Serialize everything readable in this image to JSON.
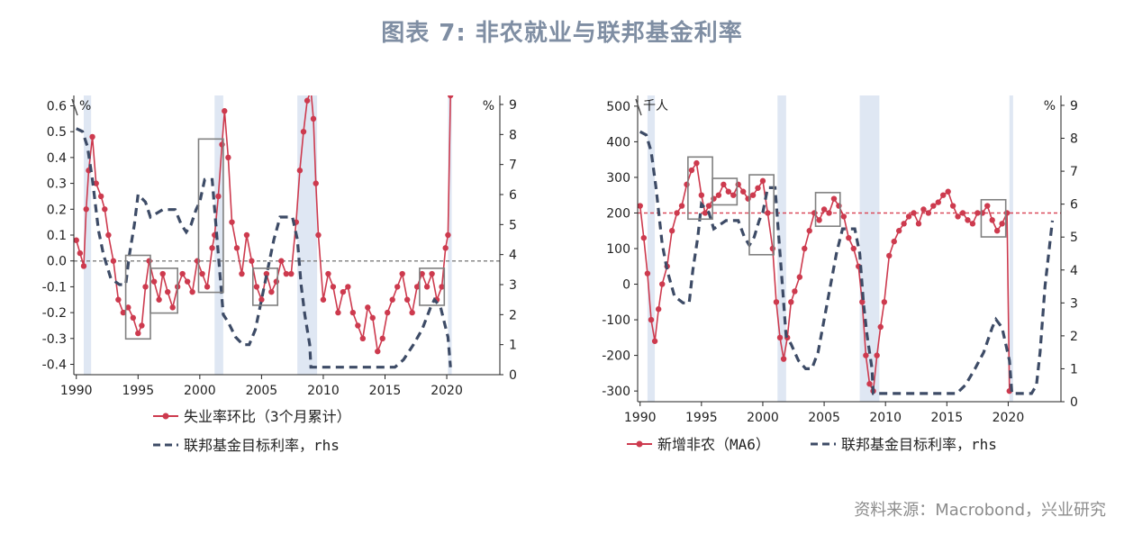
{
  "title": "图表 7:  非农就业与联邦基金利率",
  "source": "资料来源：Macrobond，兴业研究",
  "colors": {
    "red": "#cd3a4e",
    "navy": "#3d4b66",
    "shade": "#dfe7f3",
    "box": "#808080",
    "refline": "#888888",
    "refline_red": "#d94a5a"
  },
  "chart_data": [
    {
      "type": "line",
      "left_unit": "%",
      "right_unit": "%",
      "left_ticks": [
        "0.6",
        "0.5",
        "0.4",
        "0.3",
        "0.2",
        "0.1",
        "0.0",
        "-0.1",
        "-0.2",
        "-0.3",
        "-0.4"
      ],
      "right_ticks": [
        "9",
        "8",
        "7",
        "6",
        "5",
        "4",
        "3",
        "2",
        "1",
        "0"
      ],
      "x_ticks": [
        "1990",
        "1995",
        "2000",
        "2005",
        "2010",
        "2015",
        "2020"
      ],
      "xlim": [
        1989.8,
        2024.3
      ],
      "ylim_left": [
        -0.44,
        0.64
      ],
      "ylim_right": [
        0,
        9.3
      ],
      "recessions": [
        [
          1990.6,
          1991.2
        ],
        [
          2001.2,
          2001.9
        ],
        [
          2007.9,
          2009.5
        ],
        [
          2020.1,
          2020.4
        ]
      ],
      "highlight_boxes": [
        [
          1994.0,
          1996.0
        ],
        [
          1996.0,
          1998.2
        ],
        [
          1999.9,
          2001.9
        ],
        [
          2004.3,
          2006.3
        ],
        [
          2017.8,
          2019.8
        ]
      ],
      "reference_line": 0.0,
      "series": [
        {
          "name": "失业率环比（3个月累计）",
          "axis": "left",
          "style": "line-markers",
          "x": [
            1990.0,
            1990.3,
            1990.6,
            1990.8,
            1991.0,
            1991.3,
            1991.6,
            1992.0,
            1992.3,
            1992.6,
            1993.0,
            1993.4,
            1993.8,
            1994.2,
            1994.6,
            1995.0,
            1995.3,
            1995.6,
            1995.9,
            1996.3,
            1996.7,
            1997.0,
            1997.4,
            1997.8,
            1998.2,
            1998.6,
            1999.0,
            1999.4,
            1999.8,
            2000.2,
            2000.6,
            2001.0,
            2001.2,
            2001.5,
            2001.8,
            2002.0,
            2002.3,
            2002.6,
            2003.0,
            2003.4,
            2003.8,
            2004.2,
            2004.6,
            2005.0,
            2005.4,
            2005.8,
            2006.2,
            2006.6,
            2007.0,
            2007.4,
            2007.8,
            2008.1,
            2008.4,
            2008.7,
            2009.0,
            2009.2,
            2009.4,
            2009.6,
            2010.0,
            2010.4,
            2010.8,
            2011.2,
            2011.6,
            2012.0,
            2012.4,
            2012.8,
            2013.2,
            2013.6,
            2014.0,
            2014.4,
            2014.8,
            2015.2,
            2015.6,
            2016.0,
            2016.4,
            2016.8,
            2017.2,
            2017.6,
            2018.0,
            2018.4,
            2018.8,
            2019.2,
            2019.6,
            2019.9,
            2020.1,
            2020.3
          ],
          "y": [
            0.08,
            0.03,
            -0.02,
            0.2,
            0.35,
            0.48,
            0.3,
            0.25,
            0.2,
            0.1,
            0.0,
            -0.15,
            -0.2,
            -0.18,
            -0.22,
            -0.28,
            -0.25,
            -0.1,
            0.0,
            -0.08,
            -0.15,
            -0.05,
            -0.12,
            -0.18,
            -0.1,
            -0.05,
            -0.08,
            -0.12,
            0.0,
            -0.05,
            -0.1,
            0.05,
            0.1,
            0.25,
            0.45,
            0.58,
            0.4,
            0.15,
            0.05,
            -0.05,
            0.1,
            0.0,
            -0.1,
            -0.15,
            -0.05,
            -0.12,
            -0.08,
            0.0,
            -0.05,
            -0.05,
            0.15,
            0.35,
            0.5,
            0.62,
            0.66,
            0.55,
            0.3,
            0.1,
            -0.15,
            -0.05,
            -0.1,
            -0.2,
            -0.12,
            -0.1,
            -0.2,
            -0.25,
            -0.3,
            -0.18,
            -0.22,
            -0.35,
            -0.3,
            -0.2,
            -0.15,
            -0.1,
            -0.05,
            -0.15,
            -0.2,
            -0.1,
            -0.05,
            -0.1,
            -0.05,
            -0.15,
            -0.1,
            0.05,
            0.1,
            0.64
          ]
        },
        {
          "name": "联邦基金目标利率，rhs",
          "axis": "right",
          "style": "dashed",
          "x": [
            1990.0,
            1990.5,
            1990.9,
            1991.3,
            1991.8,
            1992.2,
            1992.8,
            1993.5,
            1994.0,
            1994.3,
            1994.7,
            1995.0,
            1995.6,
            1996.0,
            1997.0,
            1998.0,
            1998.5,
            1998.9,
            1999.3,
            1999.7,
            2000.0,
            2000.4,
            2001.0,
            2001.3,
            2001.6,
            2001.9,
            2002.3,
            2002.9,
            2003.5,
            2004.0,
            2004.5,
            2005.0,
            2005.5,
            2006.0,
            2006.5,
            2007.5,
            2007.9,
            2008.2,
            2008.5,
            2008.9,
            2009.0,
            2015.8,
            2016.5,
            2017.3,
            2018.0,
            2018.7,
            2019.0,
            2019.5,
            2019.8,
            2020.1,
            2020.3
          ],
          "y": [
            8.2,
            8.1,
            7.6,
            6.5,
            4.8,
            4.0,
            3.2,
            3.0,
            3.0,
            4.0,
            5.0,
            6.0,
            5.75,
            5.25,
            5.5,
            5.5,
            5.0,
            4.75,
            5.0,
            5.5,
            5.75,
            6.5,
            6.5,
            5.0,
            3.5,
            2.0,
            1.75,
            1.25,
            1.0,
            1.0,
            1.5,
            2.5,
            3.5,
            4.5,
            5.25,
            5.25,
            4.5,
            3.0,
            2.0,
            1.0,
            0.25,
            0.25,
            0.5,
            1.0,
            1.5,
            2.25,
            2.5,
            2.25,
            1.75,
            1.25,
            0.25
          ]
        }
      ]
    },
    {
      "type": "line",
      "left_unit": "千人",
      "right_unit": "%",
      "left_ticks": [
        "500",
        "400",
        "300",
        "200",
        "100",
        "0",
        "-100",
        "-200",
        "-300"
      ],
      "right_ticks": [
        "9",
        "8",
        "7",
        "6",
        "5",
        "4",
        "3",
        "2",
        "1",
        "0"
      ],
      "x_ticks": [
        "1990",
        "1995",
        "2000",
        "2005",
        "2010",
        "2015",
        "2020"
      ],
      "xlim": [
        1989.8,
        2024.3
      ],
      "ylim_left": [
        -330,
        530
      ],
      "ylim_right": [
        0,
        9.3
      ],
      "recessions": [
        [
          1990.6,
          1991.2
        ],
        [
          2001.2,
          2001.9
        ],
        [
          2007.9,
          2009.5
        ],
        [
          2020.1,
          2020.4
        ]
      ],
      "highlight_boxes": [
        [
          1993.9,
          1995.9
        ],
        [
          1995.9,
          1997.9
        ],
        [
          1998.9,
          2000.9
        ],
        [
          2004.3,
          2006.3
        ],
        [
          2017.8,
          2019.8
        ]
      ],
      "reference_line": 200,
      "series": [
        {
          "name": "新增非农（MA6）",
          "axis": "left",
          "style": "line-markers",
          "x": [
            1990.0,
            1990.3,
            1990.6,
            1990.9,
            1991.2,
            1991.5,
            1991.8,
            1992.2,
            1992.6,
            1993.0,
            1993.4,
            1993.8,
            1994.2,
            1994.6,
            1995.0,
            1995.3,
            1995.6,
            1996.0,
            1996.4,
            1996.8,
            1997.2,
            1997.6,
            1998.0,
            1998.4,
            1998.8,
            1999.2,
            1999.6,
            2000.0,
            2000.4,
            2000.8,
            2001.1,
            2001.4,
            2001.7,
            2002.0,
            2002.3,
            2002.6,
            2003.0,
            2003.4,
            2003.8,
            2004.2,
            2004.6,
            2005.0,
            2005.4,
            2005.8,
            2006.2,
            2006.6,
            2007.0,
            2007.4,
            2007.8,
            2008.1,
            2008.4,
            2008.7,
            2009.0,
            2009.3,
            2009.6,
            2009.9,
            2010.3,
            2010.7,
            2011.1,
            2011.5,
            2011.9,
            2012.3,
            2012.7,
            2013.1,
            2013.5,
            2013.9,
            2014.3,
            2014.7,
            2015.1,
            2015.5,
            2015.9,
            2016.3,
            2016.7,
            2017.1,
            2017.5,
            2017.9,
            2018.3,
            2018.7,
            2019.1,
            2019.5,
            2019.9,
            2020.1
          ],
          "y": [
            220,
            130,
            30,
            -100,
            -160,
            -70,
            0,
            50,
            150,
            200,
            220,
            280,
            320,
            340,
            250,
            200,
            220,
            240,
            250,
            280,
            260,
            250,
            280,
            260,
            240,
            250,
            270,
            290,
            200,
            100,
            -50,
            -150,
            -210,
            -150,
            -50,
            -20,
            20,
            100,
            150,
            200,
            180,
            210,
            200,
            240,
            220,
            190,
            130,
            100,
            50,
            -50,
            -200,
            -280,
            -300,
            -200,
            -120,
            -50,
            80,
            120,
            150,
            170,
            190,
            200,
            170,
            210,
            200,
            220,
            230,
            250,
            260,
            220,
            190,
            200,
            180,
            170,
            200,
            200,
            220,
            180,
            150,
            170,
            200,
            -300
          ]
        },
        {
          "name": "联邦基金目标利率，rhs",
          "axis": "right",
          "style": "dashed",
          "x": [
            1990.0,
            1990.5,
            1990.9,
            1991.3,
            1991.8,
            1992.2,
            1992.8,
            1993.5,
            1994.0,
            1994.3,
            1994.7,
            1995.0,
            1995.6,
            1996.0,
            1997.0,
            1998.0,
            1998.5,
            1998.9,
            1999.3,
            1999.7,
            2000.0,
            2000.4,
            2001.0,
            2001.3,
            2001.6,
            2001.9,
            2002.3,
            2002.9,
            2003.5,
            2004.0,
            2004.5,
            2005.0,
            2005.5,
            2006.0,
            2006.5,
            2007.5,
            2007.9,
            2008.2,
            2008.5,
            2008.9,
            2009.0,
            2015.8,
            2016.5,
            2017.3,
            2018.0,
            2018.7,
            2019.0,
            2019.5,
            2019.8,
            2020.1,
            2020.3,
            2021.9,
            2022.3,
            2022.6,
            2023.0,
            2023.6
          ],
          "y": [
            8.2,
            8.1,
            7.6,
            6.5,
            4.8,
            4.0,
            3.2,
            3.0,
            3.0,
            4.0,
            5.0,
            6.0,
            5.75,
            5.25,
            5.5,
            5.5,
            5.0,
            4.75,
            5.0,
            5.5,
            5.75,
            6.5,
            6.5,
            5.0,
            3.5,
            2.0,
            1.75,
            1.25,
            1.0,
            1.0,
            1.5,
            2.5,
            3.5,
            4.5,
            5.25,
            5.25,
            4.5,
            3.0,
            2.0,
            1.0,
            0.25,
            0.25,
            0.5,
            1.0,
            1.5,
            2.25,
            2.5,
            2.25,
            1.75,
            1.25,
            0.25,
            0.25,
            0.5,
            1.5,
            3.5,
            5.5
          ]
        }
      ]
    }
  ],
  "legend_left": [
    "失业率环比（3个月累计）",
    "联邦基金目标利率，rhs"
  ],
  "legend_right": [
    "新增非农（MA6）",
    "联邦基金目标利率，rhs"
  ]
}
